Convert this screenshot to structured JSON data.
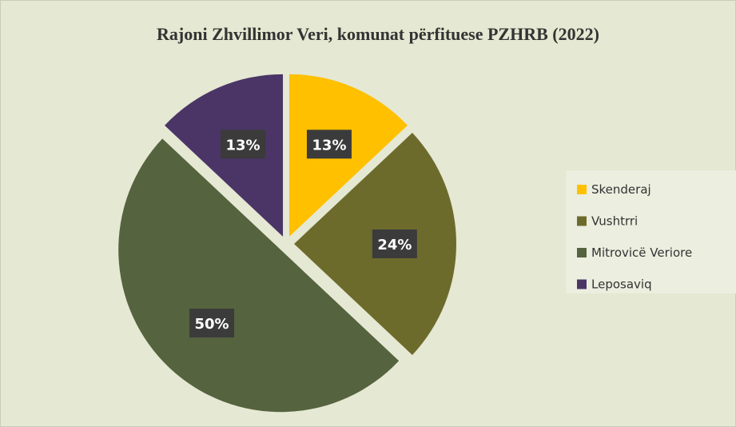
{
  "chart_data": {
    "type": "pie",
    "title": "Rajoni Zhvillimor Veri, komunat përfituese PZHRB (2022)",
    "categories": [
      "Skenderaj",
      "Vushtrri",
      "Mitrovicë Veriore",
      "Leposaviq"
    ],
    "values": [
      13,
      24,
      50,
      13
    ],
    "value_labels": [
      "13%",
      "24%",
      "50%",
      "13%"
    ],
    "colors": [
      "#ffc000",
      "#6d6b2c",
      "#55633f",
      "#4b3566"
    ],
    "legend": "right"
  }
}
